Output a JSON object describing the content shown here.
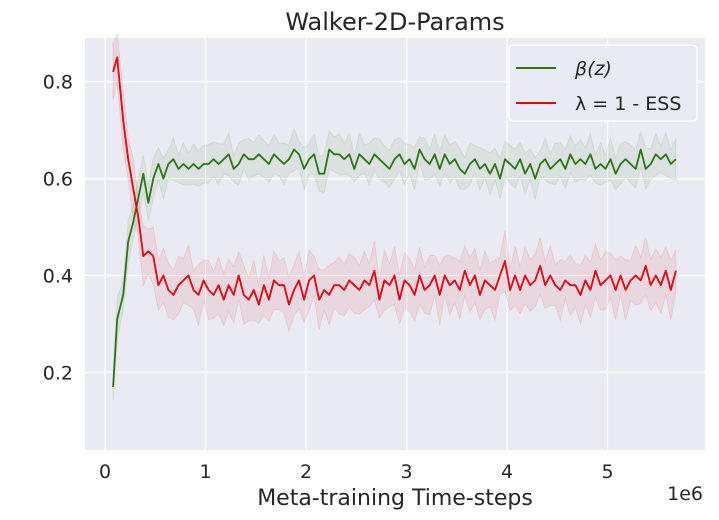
{
  "chart_data": {
    "type": "line",
    "title": "Walker-2D-Params",
    "xlabel": "Meta-training Time-steps",
    "ylabel": "",
    "x_scale_label": "1e6",
    "xlim": [
      -0.2,
      5.97
    ],
    "ylim": [
      0.04,
      0.89
    ],
    "x_ticks": [
      0,
      1,
      2,
      3,
      4,
      5
    ],
    "x_tick_labels": [
      "0",
      "1",
      "2",
      "3",
      "4",
      "5"
    ],
    "y_ticks": [
      0.2,
      0.4,
      0.6,
      0.8
    ],
    "y_tick_labels": [
      "0.2",
      "0.4",
      "0.6",
      "0.8"
    ],
    "grid": true,
    "background": "#eaeaf2",
    "legend_position": "top-right",
    "x": [
      0.08,
      0.12,
      0.18,
      0.23,
      0.28,
      0.33,
      0.38,
      0.43,
      0.48,
      0.53,
      0.58,
      0.63,
      0.68,
      0.73,
      0.78,
      0.83,
      0.88,
      0.93,
      0.98,
      1.03,
      1.08,
      1.13,
      1.18,
      1.23,
      1.28,
      1.33,
      1.38,
      1.43,
      1.48,
      1.53,
      1.58,
      1.63,
      1.68,
      1.73,
      1.78,
      1.83,
      1.88,
      1.93,
      1.98,
      2.03,
      2.08,
      2.13,
      2.18,
      2.23,
      2.28,
      2.33,
      2.38,
      2.43,
      2.48,
      2.53,
      2.58,
      2.63,
      2.68,
      2.73,
      2.78,
      2.83,
      2.88,
      2.93,
      2.98,
      3.03,
      3.08,
      3.13,
      3.18,
      3.23,
      3.28,
      3.33,
      3.38,
      3.43,
      3.48,
      3.53,
      3.58,
      3.63,
      3.68,
      3.73,
      3.78,
      3.83,
      3.88,
      3.93,
      3.98,
      4.03,
      4.08,
      4.13,
      4.18,
      4.23,
      4.28,
      4.33,
      4.38,
      4.43,
      4.48,
      4.53,
      4.58,
      4.63,
      4.68,
      4.73,
      4.78,
      4.83,
      4.88,
      4.93,
      4.98,
      5.03,
      5.08,
      5.13,
      5.18,
      5.23,
      5.28,
      5.33,
      5.38,
      5.43,
      5.48,
      5.53,
      5.58,
      5.63,
      5.68
    ],
    "series": [
      {
        "name": "β(z)",
        "legend_label": "β(z)",
        "color": "#2d7514",
        "band_color": "#2d7514",
        "values": [
          0.17,
          0.31,
          0.36,
          0.47,
          0.51,
          0.56,
          0.61,
          0.55,
          0.6,
          0.63,
          0.6,
          0.63,
          0.64,
          0.62,
          0.63,
          0.62,
          0.63,
          0.62,
          0.63,
          0.63,
          0.64,
          0.63,
          0.64,
          0.65,
          0.62,
          0.63,
          0.65,
          0.64,
          0.64,
          0.65,
          0.64,
          0.63,
          0.65,
          0.64,
          0.63,
          0.64,
          0.66,
          0.65,
          0.62,
          0.64,
          0.65,
          0.61,
          0.61,
          0.66,
          0.65,
          0.65,
          0.64,
          0.65,
          0.62,
          0.65,
          0.64,
          0.63,
          0.65,
          0.64,
          0.63,
          0.62,
          0.64,
          0.65,
          0.63,
          0.64,
          0.62,
          0.66,
          0.64,
          0.63,
          0.65,
          0.62,
          0.65,
          0.63,
          0.64,
          0.62,
          0.61,
          0.63,
          0.64,
          0.62,
          0.63,
          0.61,
          0.63,
          0.6,
          0.64,
          0.63,
          0.62,
          0.64,
          0.61,
          0.63,
          0.6,
          0.63,
          0.64,
          0.62,
          0.63,
          0.64,
          0.62,
          0.65,
          0.63,
          0.64,
          0.63,
          0.65,
          0.62,
          0.63,
          0.62,
          0.64,
          0.61,
          0.63,
          0.64,
          0.63,
          0.62,
          0.66,
          0.62,
          0.63,
          0.65,
          0.64,
          0.65,
          0.63,
          0.64
        ],
        "band_width": 0.035
      },
      {
        "name": "λ = 1 - ESS",
        "legend_label": "λ = 1 - ESS",
        "color": "#e8000b",
        "band_color": "#e8000b",
        "values": [
          0.82,
          0.85,
          0.72,
          0.64,
          0.58,
          0.52,
          0.44,
          0.45,
          0.44,
          0.38,
          0.4,
          0.37,
          0.36,
          0.38,
          0.39,
          0.4,
          0.37,
          0.36,
          0.39,
          0.37,
          0.36,
          0.38,
          0.35,
          0.38,
          0.36,
          0.4,
          0.36,
          0.35,
          0.37,
          0.34,
          0.38,
          0.35,
          0.39,
          0.38,
          0.38,
          0.34,
          0.37,
          0.39,
          0.35,
          0.39,
          0.4,
          0.35,
          0.37,
          0.36,
          0.38,
          0.38,
          0.37,
          0.39,
          0.38,
          0.37,
          0.39,
          0.38,
          0.41,
          0.35,
          0.39,
          0.38,
          0.4,
          0.35,
          0.39,
          0.38,
          0.36,
          0.4,
          0.37,
          0.38,
          0.4,
          0.36,
          0.4,
          0.38,
          0.39,
          0.37,
          0.41,
          0.38,
          0.4,
          0.36,
          0.39,
          0.38,
          0.37,
          0.4,
          0.43,
          0.37,
          0.4,
          0.37,
          0.4,
          0.38,
          0.39,
          0.42,
          0.38,
          0.4,
          0.38,
          0.37,
          0.39,
          0.38,
          0.38,
          0.36,
          0.39,
          0.37,
          0.41,
          0.38,
          0.39,
          0.4,
          0.37,
          0.4,
          0.37,
          0.39,
          0.4,
          0.39,
          0.42,
          0.38,
          0.4,
          0.38,
          0.41,
          0.37,
          0.41
        ],
        "band_width": 0.05
      }
    ]
  }
}
